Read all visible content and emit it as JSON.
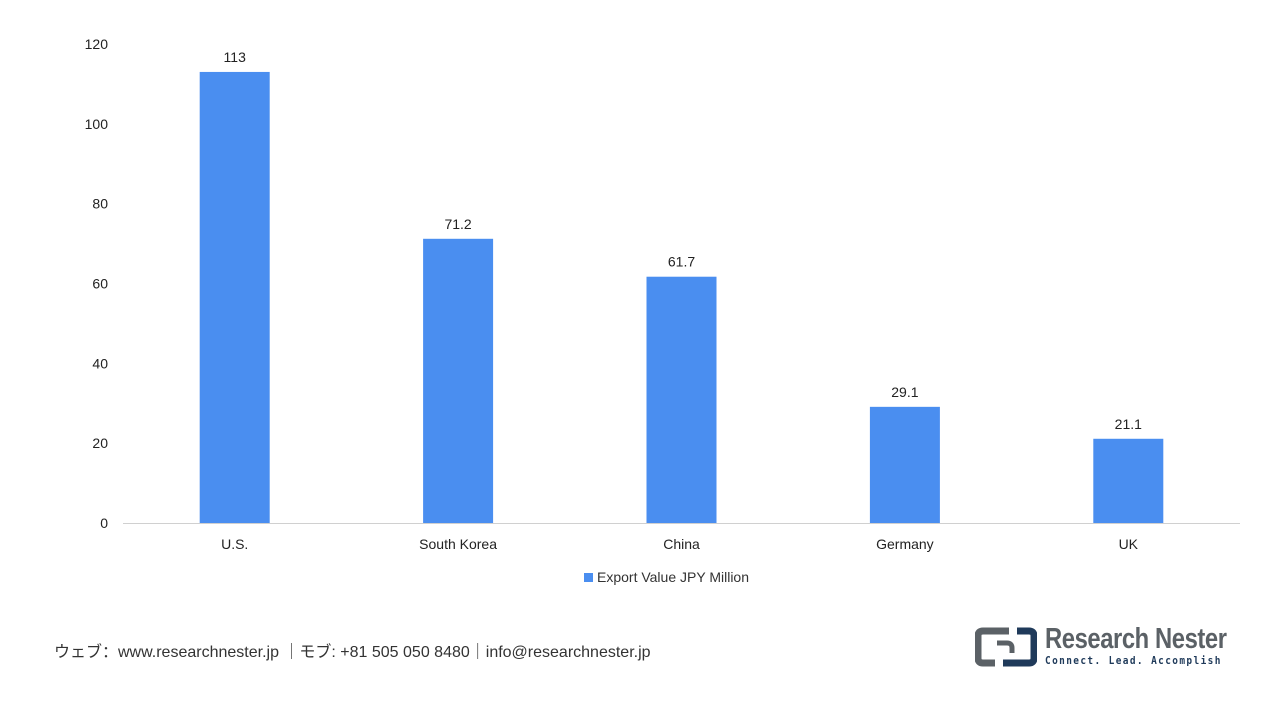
{
  "chart_data": {
    "type": "bar",
    "categories": [
      "U.S.",
      "South Korea",
      "China",
      "Germany",
      "UK"
    ],
    "series": [
      {
        "name": "Export Value JPY Million",
        "values": [
          113,
          71.2,
          61.7,
          29.1,
          21.1
        ]
      }
    ],
    "data_labels": [
      "113",
      "71.2",
      "61.7",
      "29.1",
      "21.1"
    ],
    "ylim": [
      0,
      120
    ],
    "yticks": [
      0,
      20,
      40,
      60,
      80,
      100,
      120
    ],
    "grid": false,
    "legend_position": "bottom",
    "colors": {
      "bar": "#4a8ef0",
      "axis": "#d0d0d0"
    }
  },
  "footer": {
    "contact": "ウェブ：www.researchnester.jp ｜モブ: +81 505 050 8480｜info@researchnester.jp"
  },
  "logo": {
    "name": "Research Nester",
    "tagline": "Connect. Lead. Accomplish",
    "icon": "research-nester-logo-icon"
  }
}
